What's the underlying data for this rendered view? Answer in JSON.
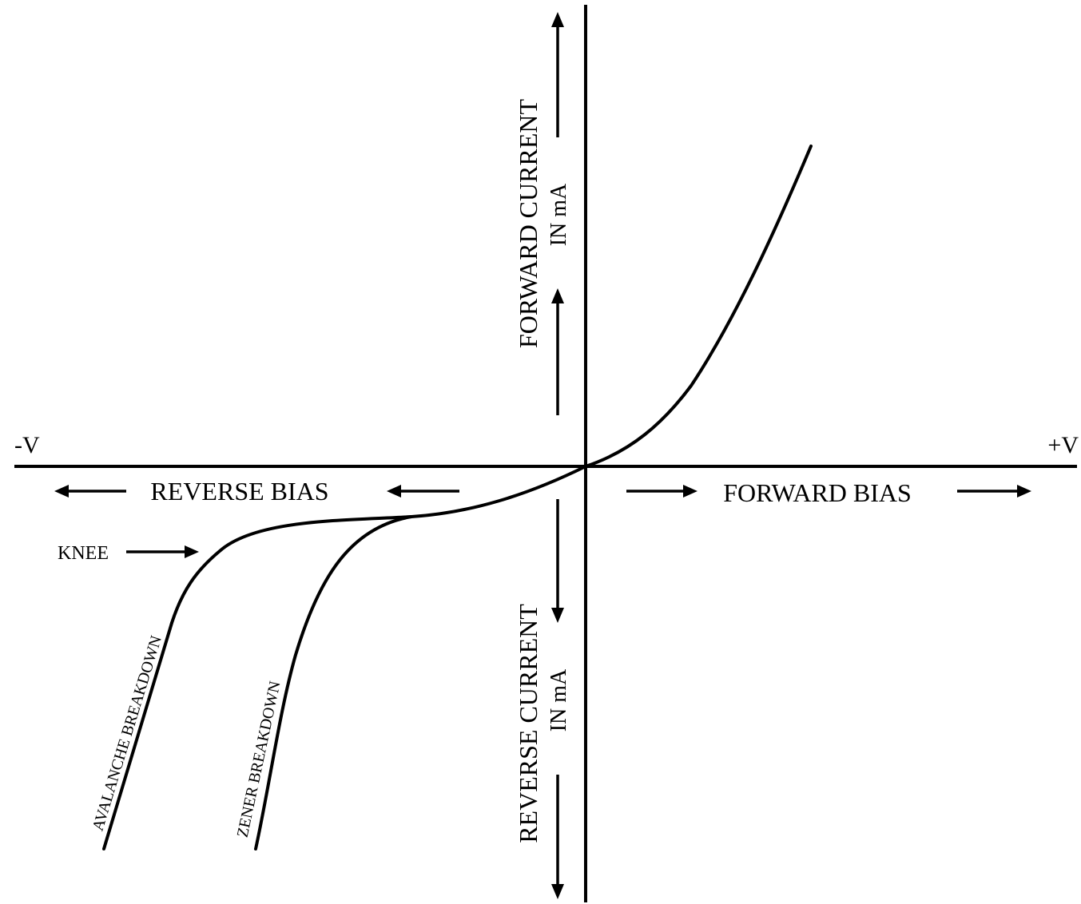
{
  "title": "",
  "labels": {
    "neg_v": "-V",
    "pos_v": "+V",
    "reverse_bias": "REVERSE BIAS",
    "forward_bias": "FORWARD BIAS",
    "forward_current": "FORWARD CURRENT",
    "forward_current_unit": "IN mA",
    "reverse_current": "REVERSE CURRENT",
    "reverse_current_unit": "IN mA",
    "knee": "KNEE",
    "avalanche": "AVALANCHE  BREAKDOWN",
    "zener": "ZENER  BREAKDOWN"
  },
  "colors": {
    "line": "#000000",
    "background": "#ffffff"
  }
}
